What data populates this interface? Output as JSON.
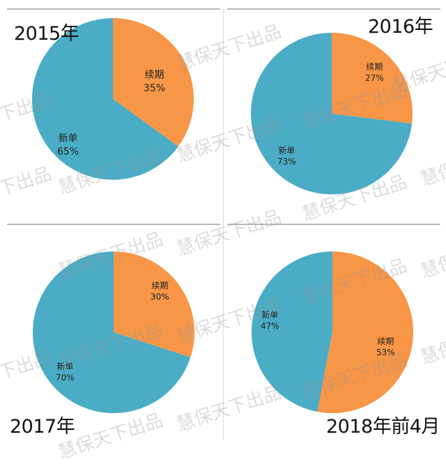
{
  "colors": {
    "renewal": "#F79646",
    "new": "#4BACC6"
  },
  "watermark_text": "慧保天下出品",
  "chart_data": [
    {
      "type": "pie",
      "title": "2015年",
      "slices": [
        {
          "name": "续期",
          "value": 35,
          "label": "35%"
        },
        {
          "name": "新单",
          "value": 65,
          "label": "65%"
        }
      ]
    },
    {
      "type": "pie",
      "title": "2016年",
      "slices": [
        {
          "name": "续期",
          "value": 27,
          "label": "27%"
        },
        {
          "name": "新单",
          "value": 73,
          "label": "73%"
        }
      ]
    },
    {
      "type": "pie",
      "title": "2017年",
      "slices": [
        {
          "name": "续期",
          "value": 30,
          "label": "30%"
        },
        {
          "name": "新单",
          "value": 70,
          "label": "70%"
        }
      ]
    },
    {
      "type": "pie",
      "title": "2018年前4月",
      "slices": [
        {
          "name": "续期",
          "value": 53,
          "label": "53%"
        },
        {
          "name": "新单",
          "value": 47,
          "label": "47%"
        }
      ]
    }
  ]
}
